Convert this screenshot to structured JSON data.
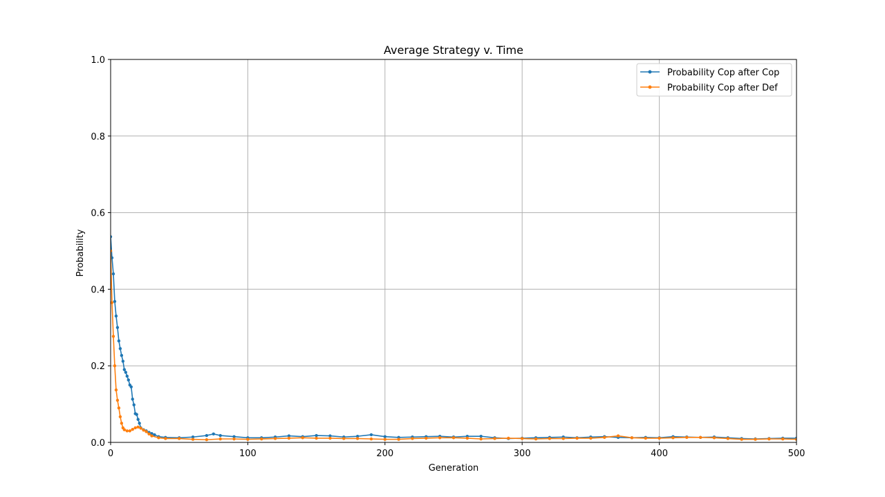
{
  "chart_data": {
    "type": "line",
    "title": "Average Strategy v. Time",
    "xlabel": "Generation",
    "ylabel": "Probability",
    "xlim": [
      0,
      500
    ],
    "ylim": [
      0,
      1.0
    ],
    "xticks": [
      0,
      100,
      200,
      300,
      400,
      500
    ],
    "xtick_labels": [
      "0",
      "100",
      "200",
      "300",
      "400",
      "500"
    ],
    "yticks": [
      0.0,
      0.2,
      0.4,
      0.6,
      0.8,
      1.0
    ],
    "ytick_labels": [
      "0.0",
      "0.2",
      "0.4",
      "0.6",
      "0.8",
      "1.0"
    ],
    "grid": true,
    "legend_position": "top-right",
    "series": [
      {
        "name": "Probability Cop after Cop",
        "color": "#1f77b4",
        "marker": "dot",
        "points": [
          [
            0,
            0.537
          ],
          [
            1,
            0.482
          ],
          [
            2,
            0.44
          ],
          [
            3,
            0.368
          ],
          [
            4,
            0.33
          ],
          [
            5,
            0.3
          ],
          [
            6,
            0.265
          ],
          [
            7,
            0.245
          ],
          [
            8,
            0.227
          ],
          [
            9,
            0.212
          ],
          [
            10,
            0.19
          ],
          [
            11,
            0.183
          ],
          [
            12,
            0.173
          ],
          [
            13,
            0.163
          ],
          [
            14,
            0.15
          ],
          [
            15,
            0.145
          ],
          [
            16,
            0.113
          ],
          [
            17,
            0.098
          ],
          [
            18,
            0.075
          ],
          [
            19,
            0.073
          ],
          [
            20,
            0.06
          ],
          [
            21,
            0.05
          ],
          [
            22,
            0.038
          ],
          [
            24,
            0.033
          ],
          [
            26,
            0.03
          ],
          [
            28,
            0.026
          ],
          [
            30,
            0.023
          ],
          [
            32,
            0.02
          ],
          [
            35,
            0.015
          ],
          [
            40,
            0.013
          ],
          [
            50,
            0.012
          ],
          [
            60,
            0.014
          ],
          [
            70,
            0.018
          ],
          [
            75,
            0.022
          ],
          [
            80,
            0.018
          ],
          [
            90,
            0.015
          ],
          [
            100,
            0.012
          ],
          [
            110,
            0.012
          ],
          [
            120,
            0.014
          ],
          [
            130,
            0.017
          ],
          [
            140,
            0.015
          ],
          [
            150,
            0.018
          ],
          [
            160,
            0.017
          ],
          [
            170,
            0.014
          ],
          [
            180,
            0.016
          ],
          [
            190,
            0.02
          ],
          [
            200,
            0.015
          ],
          [
            210,
            0.013
          ],
          [
            220,
            0.014
          ],
          [
            230,
            0.015
          ],
          [
            240,
            0.016
          ],
          [
            250,
            0.014
          ],
          [
            260,
            0.016
          ],
          [
            270,
            0.016
          ],
          [
            280,
            0.012
          ],
          [
            290,
            0.01
          ],
          [
            300,
            0.011
          ],
          [
            310,
            0.012
          ],
          [
            320,
            0.013
          ],
          [
            330,
            0.014
          ],
          [
            340,
            0.012
          ],
          [
            350,
            0.014
          ],
          [
            360,
            0.015
          ],
          [
            370,
            0.013
          ],
          [
            380,
            0.012
          ],
          [
            390,
            0.013
          ],
          [
            400,
            0.012
          ],
          [
            410,
            0.015
          ],
          [
            420,
            0.014
          ],
          [
            430,
            0.013
          ],
          [
            440,
            0.014
          ],
          [
            450,
            0.012
          ],
          [
            460,
            0.01
          ],
          [
            470,
            0.009
          ],
          [
            480,
            0.01
          ],
          [
            490,
            0.011
          ],
          [
            500,
            0.011
          ]
        ]
      },
      {
        "name": "Probability Cop after Def",
        "color": "#ff7f0e",
        "marker": "dot",
        "points": [
          [
            0,
            0.5
          ],
          [
            1,
            0.365
          ],
          [
            2,
            0.277
          ],
          [
            3,
            0.2
          ],
          [
            4,
            0.137
          ],
          [
            5,
            0.11
          ],
          [
            6,
            0.09
          ],
          [
            7,
            0.067
          ],
          [
            8,
            0.05
          ],
          [
            9,
            0.038
          ],
          [
            10,
            0.033
          ],
          [
            12,
            0.03
          ],
          [
            14,
            0.03
          ],
          [
            16,
            0.034
          ],
          [
            18,
            0.038
          ],
          [
            20,
            0.04
          ],
          [
            22,
            0.037
          ],
          [
            24,
            0.032
          ],
          [
            26,
            0.028
          ],
          [
            28,
            0.022
          ],
          [
            30,
            0.017
          ],
          [
            35,
            0.012
          ],
          [
            40,
            0.01
          ],
          [
            50,
            0.01
          ],
          [
            60,
            0.008
          ],
          [
            70,
            0.007
          ],
          [
            80,
            0.009
          ],
          [
            90,
            0.009
          ],
          [
            100,
            0.008
          ],
          [
            110,
            0.009
          ],
          [
            120,
            0.01
          ],
          [
            130,
            0.011
          ],
          [
            140,
            0.012
          ],
          [
            150,
            0.011
          ],
          [
            160,
            0.011
          ],
          [
            170,
            0.01
          ],
          [
            180,
            0.01
          ],
          [
            190,
            0.009
          ],
          [
            200,
            0.008
          ],
          [
            210,
            0.008
          ],
          [
            220,
            0.01
          ],
          [
            230,
            0.011
          ],
          [
            240,
            0.012
          ],
          [
            250,
            0.012
          ],
          [
            260,
            0.011
          ],
          [
            270,
            0.009
          ],
          [
            280,
            0.01
          ],
          [
            290,
            0.011
          ],
          [
            300,
            0.01
          ],
          [
            310,
            0.009
          ],
          [
            320,
            0.01
          ],
          [
            330,
            0.01
          ],
          [
            340,
            0.011
          ],
          [
            350,
            0.011
          ],
          [
            360,
            0.013
          ],
          [
            370,
            0.017
          ],
          [
            380,
            0.012
          ],
          [
            390,
            0.011
          ],
          [
            400,
            0.011
          ],
          [
            410,
            0.012
          ],
          [
            420,
            0.013
          ],
          [
            430,
            0.013
          ],
          [
            440,
            0.012
          ],
          [
            450,
            0.01
          ],
          [
            460,
            0.008
          ],
          [
            470,
            0.008
          ],
          [
            480,
            0.009
          ],
          [
            490,
            0.009
          ],
          [
            500,
            0.008
          ]
        ]
      }
    ]
  }
}
